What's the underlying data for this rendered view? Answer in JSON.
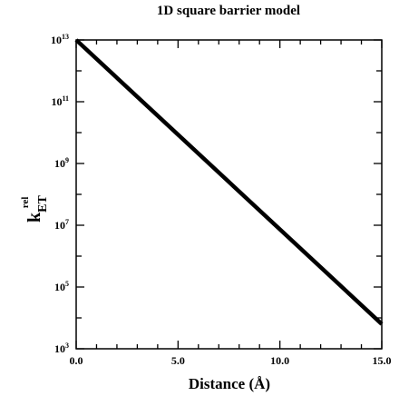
{
  "chart_data": {
    "type": "line",
    "title": "1D  square  barrier  model",
    "xlabel": "Distance (Å)",
    "ylabel": {
      "main": "k",
      "sub": "ET",
      "sup": "rel"
    },
    "xlim": [
      0.0,
      15.0
    ],
    "ylim_log10": [
      3,
      13
    ],
    "y_scale": "log",
    "x_ticks": [
      "0.0",
      "5.0",
      "10.0",
      "15.0"
    ],
    "x_tick_values": [
      0,
      5,
      10,
      15
    ],
    "y_ticks": [
      {
        "base": "10",
        "exp": "3",
        "value": 3
      },
      {
        "base": "10",
        "exp": "5",
        "value": 5
      },
      {
        "base": "10",
        "exp": "7",
        "value": 7
      },
      {
        "base": "10",
        "exp": "9",
        "value": 9
      },
      {
        "base": "10",
        "exp": "11",
        "value": 11
      },
      {
        "base": "10",
        "exp": "13",
        "value": 13
      }
    ],
    "grid": false,
    "series": [
      {
        "x": [
          0.0,
          15.0
        ],
        "log10_y": [
          13.0,
          3.8
        ]
      }
    ]
  }
}
